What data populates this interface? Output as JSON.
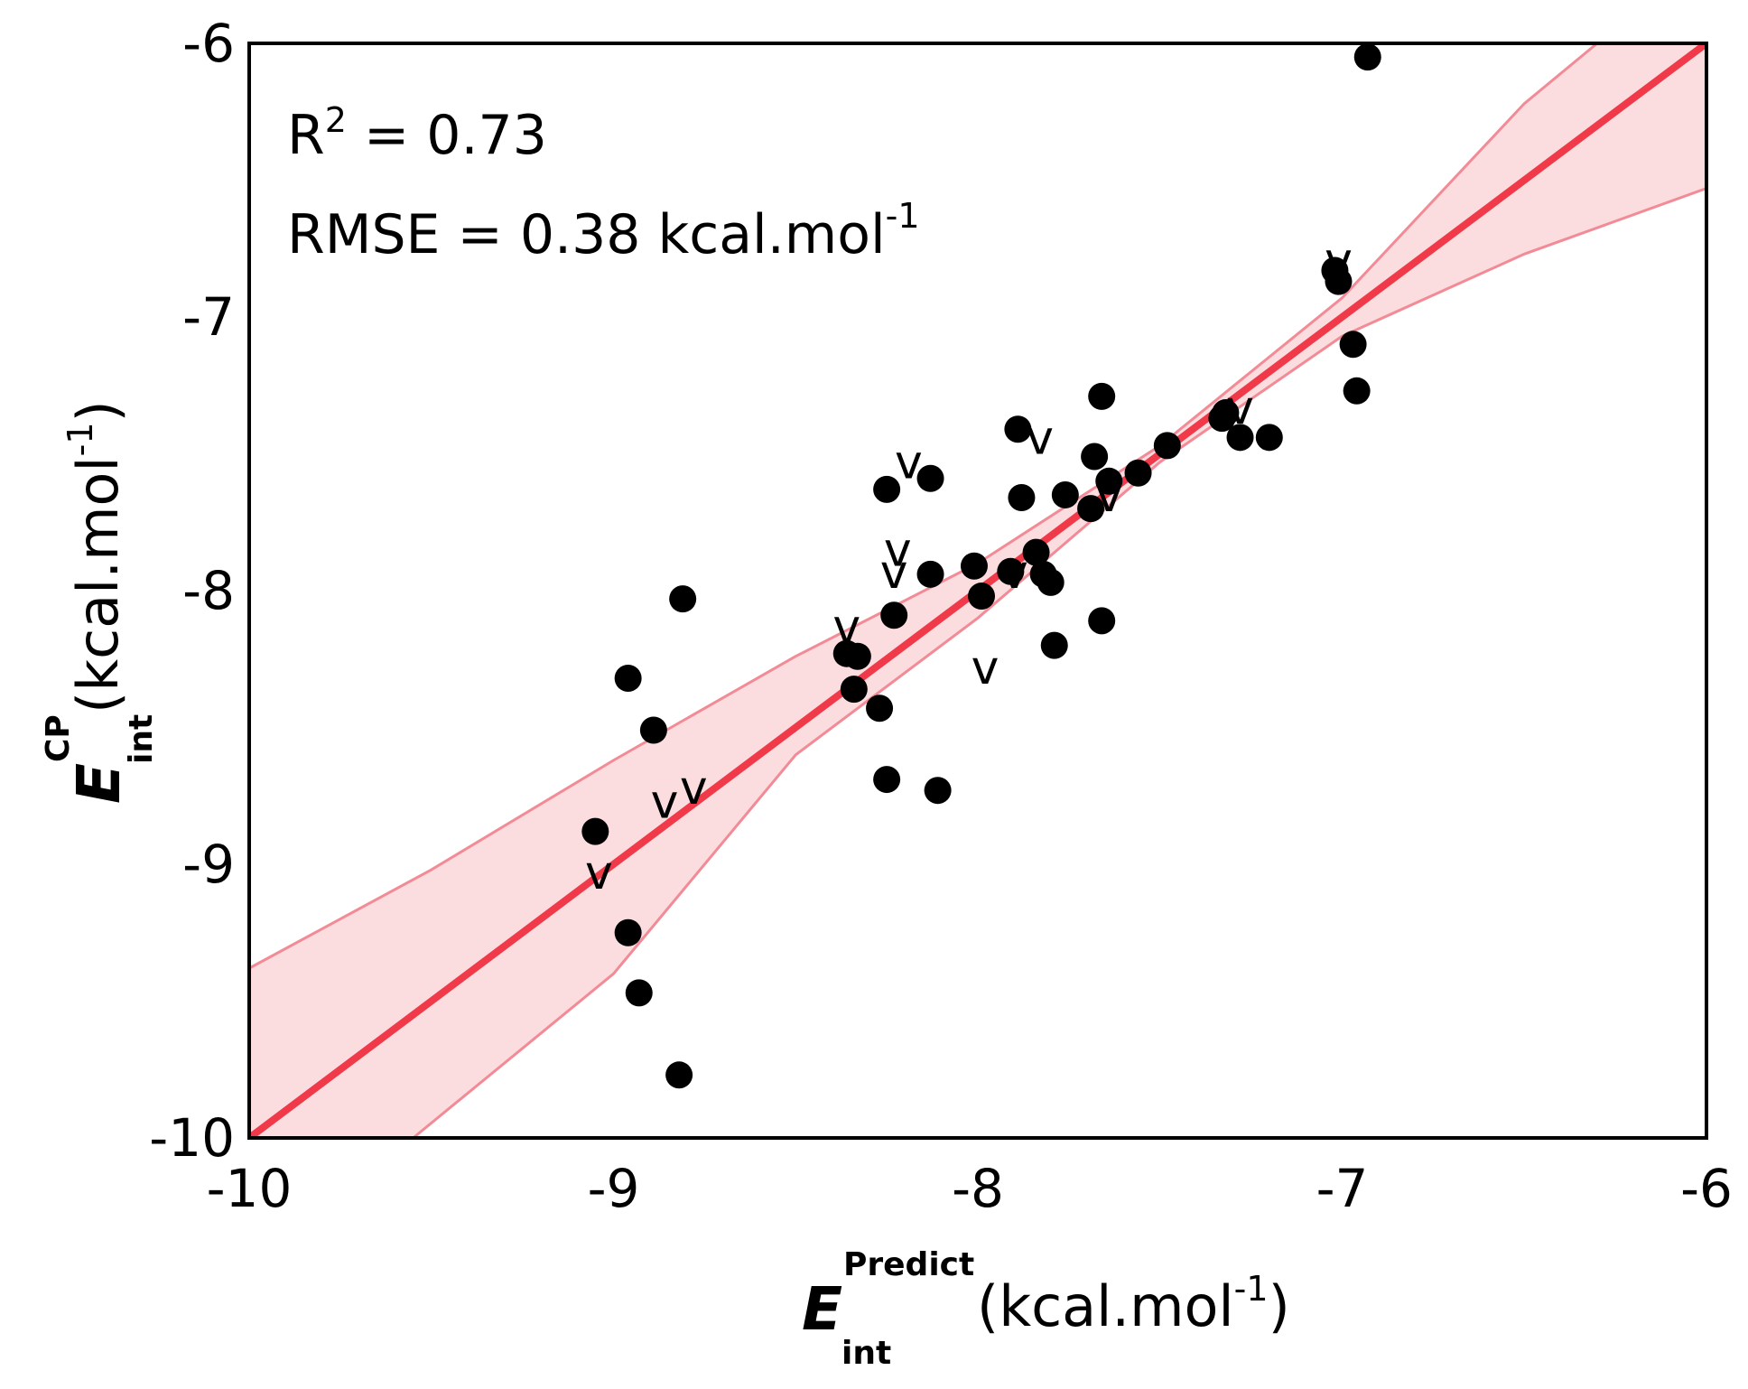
{
  "chart_data": {
    "type": "scatter",
    "title": "",
    "xlabel": {
      "symbol": "E",
      "sup": "Predict",
      "sub": "int",
      "unit": "(kcal.mol",
      "unit_sup": "-1",
      "unit_close": ")"
    },
    "ylabel": {
      "symbol": "E",
      "sup": "CP",
      "sub": "int",
      "unit": "(kcal.mol",
      "unit_sup": "-1",
      "unit_close": ")"
    },
    "xlim": [
      -10,
      -6
    ],
    "ylim": [
      -10,
      -6
    ],
    "xticks": [
      -10,
      -9,
      -8,
      -7,
      -6
    ],
    "yticks": [
      -10,
      -9,
      -8,
      -7,
      -6
    ],
    "xtick_labels": [
      "-10",
      "-9",
      "-8",
      "-7",
      "-6"
    ],
    "ytick_labels": [
      "-10",
      "-9",
      "-8",
      "-7",
      "-6"
    ],
    "grid": false,
    "annotations": {
      "r2_label": "R",
      "r2_sup": "2",
      "r2_value": " = 0.73",
      "rmse_text": "RMSE = 0.38 kcal.mol",
      "rmse_sup": "-1"
    },
    "regression": {
      "color": "#f03a4a",
      "band_color": "#f9c7cc",
      "band_edge": "#f28b96",
      "x0": -10,
      "x1": -6,
      "y0": -10,
      "y1": -6
    },
    "band": {
      "upper": [
        [
          -10,
          -9.38
        ],
        [
          -9.5,
          -9.02
        ],
        [
          -9,
          -8.62
        ],
        [
          -8.5,
          -8.24
        ],
        [
          -8,
          -7.9
        ],
        [
          -7.5,
          -7.47
        ],
        [
          -7,
          -6.93
        ],
        [
          -6.5,
          -6.22
        ],
        [
          -6.3,
          -6.0
        ]
      ],
      "lower": [
        [
          -9.55,
          -10.0
        ],
        [
          -9,
          -9.4
        ],
        [
          -8.5,
          -8.6
        ],
        [
          -8,
          -8.1
        ],
        [
          -7.5,
          -7.53
        ],
        [
          -7,
          -7.07
        ],
        [
          -6.5,
          -6.77
        ],
        [
          -6,
          -6.53
        ]
      ]
    },
    "series": [
      {
        "marker": "circle",
        "color": "#000000",
        "points": [
          [
            -9.05,
            -8.88
          ],
          [
            -8.96,
            -8.32
          ],
          [
            -8.96,
            -9.25
          ],
          [
            -8.93,
            -9.47
          ],
          [
            -8.89,
            -8.51
          ],
          [
            -8.81,
            -8.03
          ],
          [
            -8.82,
            -9.77
          ],
          [
            -8.36,
            -8.23
          ],
          [
            -8.34,
            -8.36
          ],
          [
            -8.33,
            -8.24
          ],
          [
            -8.27,
            -8.43
          ],
          [
            -8.25,
            -7.63
          ],
          [
            -8.25,
            -8.69
          ],
          [
            -8.23,
            -8.09
          ],
          [
            -8.13,
            -7.59
          ],
          [
            -8.13,
            -7.94
          ],
          [
            -8.11,
            -8.73
          ],
          [
            -8.01,
            -7.91
          ],
          [
            -7.99,
            -8.02
          ],
          [
            -7.91,
            -7.93
          ],
          [
            -7.89,
            -7.41
          ],
          [
            -7.88,
            -7.66
          ],
          [
            -7.84,
            -7.86
          ],
          [
            -7.82,
            -7.94
          ],
          [
            -7.8,
            -7.97
          ],
          [
            -7.79,
            -8.2
          ],
          [
            -7.76,
            -7.65
          ],
          [
            -7.69,
            -7.7
          ],
          [
            -7.68,
            -7.51
          ],
          [
            -7.66,
            -7.29
          ],
          [
            -7.66,
            -8.11
          ],
          [
            -7.64,
            -7.6
          ],
          [
            -7.56,
            -7.57
          ],
          [
            -7.48,
            -7.47
          ],
          [
            -7.33,
            -7.37
          ],
          [
            -7.32,
            -7.35
          ],
          [
            -7.28,
            -7.44
          ],
          [
            -7.2,
            -7.44
          ],
          [
            -7.02,
            -6.83
          ],
          [
            -7.01,
            -6.87
          ],
          [
            -6.97,
            -7.1
          ],
          [
            -6.96,
            -7.27
          ],
          [
            -6.93,
            -6.05
          ]
        ]
      },
      {
        "marker": "v-glyph",
        "glyph": "v",
        "color": "#000000",
        "points": [
          [
            -9.04,
            -9.03
          ],
          [
            -8.86,
            -8.77
          ],
          [
            -8.78,
            -8.72
          ],
          [
            -8.36,
            -8.13
          ],
          [
            -8.23,
            -7.93
          ],
          [
            -8.22,
            -7.85
          ],
          [
            -8.19,
            -7.53
          ],
          [
            -7.98,
            -8.28
          ],
          [
            -7.9,
            -7.93
          ],
          [
            -7.83,
            -7.44
          ],
          [
            -7.64,
            -7.65
          ],
          [
            -7.28,
            -7.33
          ],
          [
            -7.01,
            -6.79
          ]
        ]
      }
    ]
  }
}
